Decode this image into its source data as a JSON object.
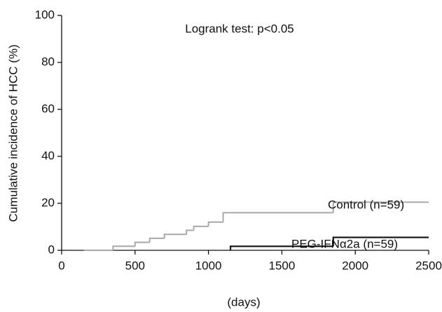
{
  "chart_data": {
    "type": "step",
    "title": "Logrank test: p<0.05",
    "xlabel": "(days)",
    "ylabel": "Cumulative incidence of HCC (%)",
    "xlim": [
      0,
      2500
    ],
    "xticks": [
      0,
      500,
      1000,
      1500,
      2000,
      2500
    ],
    "ylim": [
      0,
      100
    ],
    "yticks": [
      0,
      20,
      40,
      60,
      80,
      100
    ],
    "grid": false,
    "series": [
      {
        "name": "Control (n=59)",
        "color": "#a8a8a8",
        "x": [
          150,
          350,
          500,
          600,
          700,
          850,
          900,
          1000,
          1100,
          1850,
          2500
        ],
        "values": [
          0,
          1.7,
          3.4,
          5.1,
          6.8,
          8.5,
          10.2,
          12,
          16,
          20.5,
          20.5
        ]
      },
      {
        "name": "PEG-IFNα2a (n=59)",
        "color": "#111111",
        "x": [
          1150,
          1150,
          1850,
          2500
        ],
        "values": [
          0,
          1.7,
          5.5,
          5.5
        ]
      }
    ]
  }
}
